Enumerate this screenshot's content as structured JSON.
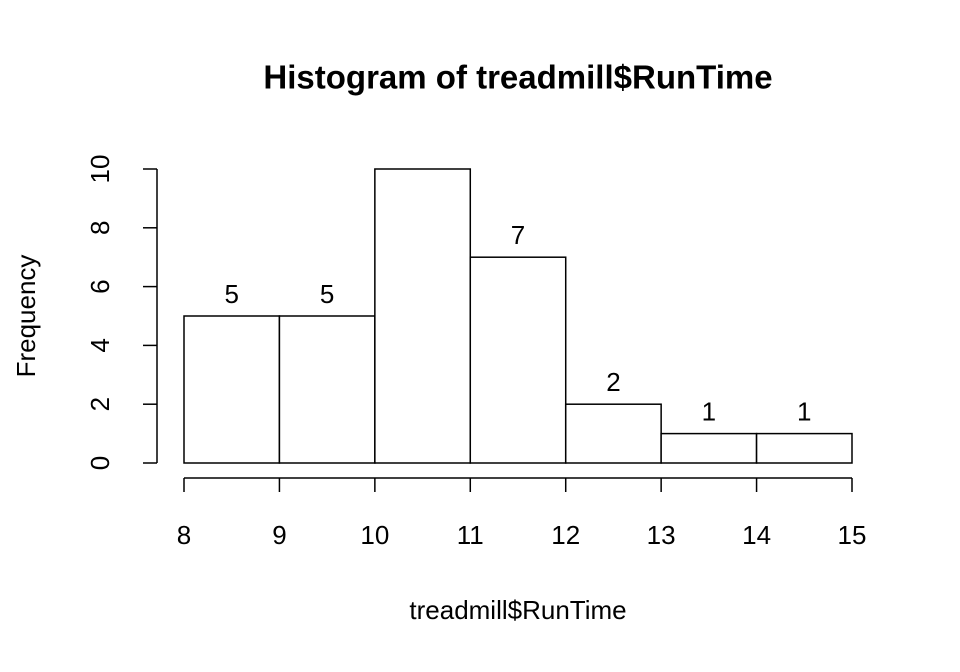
{
  "chart_data": {
    "type": "histogram",
    "title": "Histogram of treadmill$RunTime",
    "x_label": "treadmill$RunTime",
    "y_label": "Frequency",
    "bins": [
      8,
      9,
      10,
      11,
      12,
      13,
      14,
      15
    ],
    "values": [
      5,
      5,
      10,
      7,
      2,
      1,
      1
    ],
    "color": "#ffffff",
    "edge_color": "#000000",
    "xlim": [
      8,
      15
    ],
    "ylim": [
      0,
      10
    ],
    "xticks": [
      8,
      9,
      10,
      11,
      12,
      13,
      14,
      15
    ],
    "yticks": [
      0,
      2,
      4,
      6,
      8,
      10
    ]
  }
}
